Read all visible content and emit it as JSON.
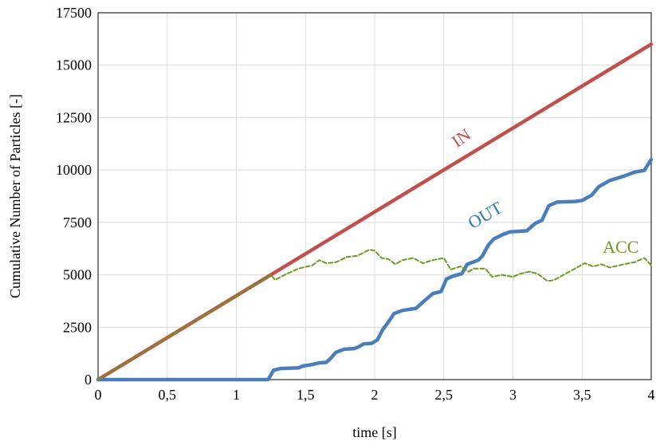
{
  "chart_data": {
    "type": "line",
    "xlabel": "time [s]",
    "ylabel": "Cumulative Number of Particles [-]",
    "xlim": [
      0,
      4
    ],
    "ylim": [
      0,
      17500
    ],
    "x_ticks": [
      0,
      0.5,
      1,
      1.5,
      2,
      2.5,
      3,
      3.5,
      4
    ],
    "x_tick_labels": [
      "0",
      "0,5",
      "1",
      "1,5",
      "2",
      "2,5",
      "3",
      "3,5",
      "4"
    ],
    "y_ticks": [
      0,
      2500,
      5000,
      7500,
      10000,
      12500,
      15000,
      17500
    ],
    "y_tick_labels": [
      "0",
      "2500",
      "5000",
      "7500",
      "10000",
      "12500",
      "15000",
      "17500"
    ],
    "grid": true,
    "series": [
      {
        "name": "IN",
        "color": "#c0504d",
        "style": "solid",
        "points": [
          [
            0,
            0
          ],
          [
            4,
            16000
          ]
        ]
      },
      {
        "name": "OUT",
        "color": "#4a7ebb",
        "style": "solid",
        "points": [
          [
            0,
            0
          ],
          [
            1.23,
            0
          ],
          [
            1.27,
            450
          ],
          [
            1.32,
            530
          ],
          [
            1.45,
            560
          ],
          [
            1.48,
            650
          ],
          [
            1.55,
            720
          ],
          [
            1.6,
            800
          ],
          [
            1.65,
            820
          ],
          [
            1.68,
            1000
          ],
          [
            1.72,
            1300
          ],
          [
            1.78,
            1450
          ],
          [
            1.85,
            1480
          ],
          [
            1.88,
            1550
          ],
          [
            1.92,
            1700
          ],
          [
            1.98,
            1730
          ],
          [
            2.02,
            1900
          ],
          [
            2.06,
            2400
          ],
          [
            2.1,
            2750
          ],
          [
            2.14,
            3150
          ],
          [
            2.2,
            3300
          ],
          [
            2.3,
            3400
          ],
          [
            2.35,
            3700
          ],
          [
            2.42,
            4100
          ],
          [
            2.48,
            4200
          ],
          [
            2.52,
            4800
          ],
          [
            2.57,
            4950
          ],
          [
            2.63,
            5050
          ],
          [
            2.67,
            5500
          ],
          [
            2.75,
            5700
          ],
          [
            2.78,
            5900
          ],
          [
            2.82,
            6400
          ],
          [
            2.86,
            6700
          ],
          [
            2.92,
            6900
          ],
          [
            2.98,
            7050
          ],
          [
            3.1,
            7100
          ],
          [
            3.16,
            7450
          ],
          [
            3.21,
            7600
          ],
          [
            3.26,
            8300
          ],
          [
            3.32,
            8470
          ],
          [
            3.45,
            8500
          ],
          [
            3.5,
            8550
          ],
          [
            3.57,
            8800
          ],
          [
            3.62,
            9200
          ],
          [
            3.7,
            9500
          ],
          [
            3.8,
            9700
          ],
          [
            3.88,
            9900
          ],
          [
            3.95,
            9980
          ],
          [
            4.0,
            10500
          ]
        ]
      },
      {
        "name": "ACC",
        "color": "#6a9a1f",
        "style": "dashed",
        "points": [
          [
            0,
            0
          ],
          [
            1.25,
            5000
          ],
          [
            1.28,
            4750
          ],
          [
            1.35,
            5000
          ],
          [
            1.45,
            5300
          ],
          [
            1.55,
            5450
          ],
          [
            1.6,
            5700
          ],
          [
            1.65,
            5550
          ],
          [
            1.72,
            5600
          ],
          [
            1.8,
            5850
          ],
          [
            1.87,
            5900
          ],
          [
            1.92,
            6050
          ],
          [
            1.96,
            6200
          ],
          [
            2.0,
            6150
          ],
          [
            2.05,
            5800
          ],
          [
            2.1,
            5750
          ],
          [
            2.15,
            5500
          ],
          [
            2.2,
            5700
          ],
          [
            2.28,
            5800
          ],
          [
            2.35,
            5550
          ],
          [
            2.42,
            5700
          ],
          [
            2.5,
            5800
          ],
          [
            2.55,
            5250
          ],
          [
            2.62,
            5400
          ],
          [
            2.68,
            5150
          ],
          [
            2.72,
            5300
          ],
          [
            2.8,
            5300
          ],
          [
            2.85,
            4900
          ],
          [
            2.92,
            5000
          ],
          [
            3.0,
            4900
          ],
          [
            3.05,
            5050
          ],
          [
            3.12,
            5150
          ],
          [
            3.18,
            5050
          ],
          [
            3.25,
            4700
          ],
          [
            3.3,
            4750
          ],
          [
            3.38,
            5050
          ],
          [
            3.45,
            5300
          ],
          [
            3.52,
            5550
          ],
          [
            3.58,
            5400
          ],
          [
            3.64,
            5500
          ],
          [
            3.7,
            5350
          ],
          [
            3.8,
            5500
          ],
          [
            3.88,
            5600
          ],
          [
            3.95,
            5800
          ],
          [
            4.0,
            5450
          ]
        ]
      }
    ],
    "annotations": [
      {
        "text": "IN",
        "series": "IN",
        "x": 2.65,
        "y": 11300,
        "color": "#c0504d",
        "rotate": -35
      },
      {
        "text": "OUT",
        "series": "OUT",
        "x": 2.82,
        "y": 7600,
        "color": "#2e75b6",
        "rotate": -30
      },
      {
        "text": "ACC",
        "series": "ACC",
        "x": 3.78,
        "y": 6050,
        "color": "#6a9a1f",
        "rotate": 0
      }
    ]
  }
}
